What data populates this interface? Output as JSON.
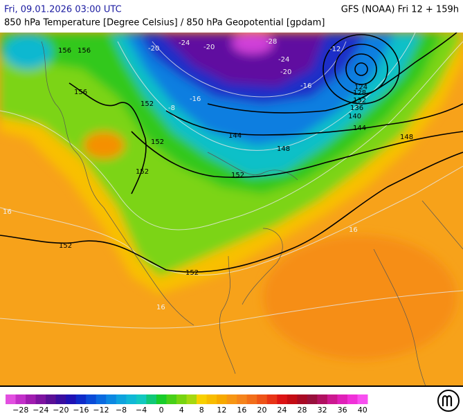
{
  "header": {
    "valid_time": "Fri, 09.01.2026 03:00 UTC",
    "model_run": "GFS (NOAA) Fri 12 + 159h",
    "title": "850 hPa Temperature [Degree Celsius] / 850 hPa Geopotential [gpdam]"
  },
  "map": {
    "contour_labels": [
      "156",
      "156",
      "156",
      "152",
      "152",
      "152",
      "152",
      "152",
      "152",
      "148",
      "148",
      "144",
      "144",
      "140",
      "136",
      "132",
      "128",
      "124",
      "-20",
      "-24",
      "-20",
      "-28",
      "-24",
      "-20",
      "-16",
      "-12",
      "-16",
      "-8",
      "16",
      "16",
      "16"
    ]
  },
  "colorbar": {
    "labels": [
      "−28",
      "−24",
      "−20",
      "−16",
      "−12",
      "−8",
      "−4",
      "0",
      "4",
      "8",
      "12",
      "16",
      "20",
      "24",
      "28",
      "32",
      "36",
      "40"
    ],
    "colors": [
      "#e24fe0",
      "#c22fc9",
      "#a01cb0",
      "#7d13a0",
      "#5a0f96",
      "#3a0ea0",
      "#1f12b5",
      "#0e2bc9",
      "#0a4bd8",
      "#0a6ae0",
      "#0c88e2",
      "#0ea3de",
      "#10b8d6",
      "#12c8c0",
      "#10c878",
      "#18cc2a",
      "#48d018",
      "#78d410",
      "#a6d810",
      "#f8d000",
      "#f8bc00",
      "#f7a900",
      "#f79614",
      "#f5841c",
      "#f26e1a",
      "#ee5418",
      "#e83416",
      "#dc1414",
      "#c40c14",
      "#a80a24",
      "#98103c",
      "#b01060",
      "#cc1890",
      "#e020b8",
      "#f030d8",
      "#f850f0"
    ]
  }
}
